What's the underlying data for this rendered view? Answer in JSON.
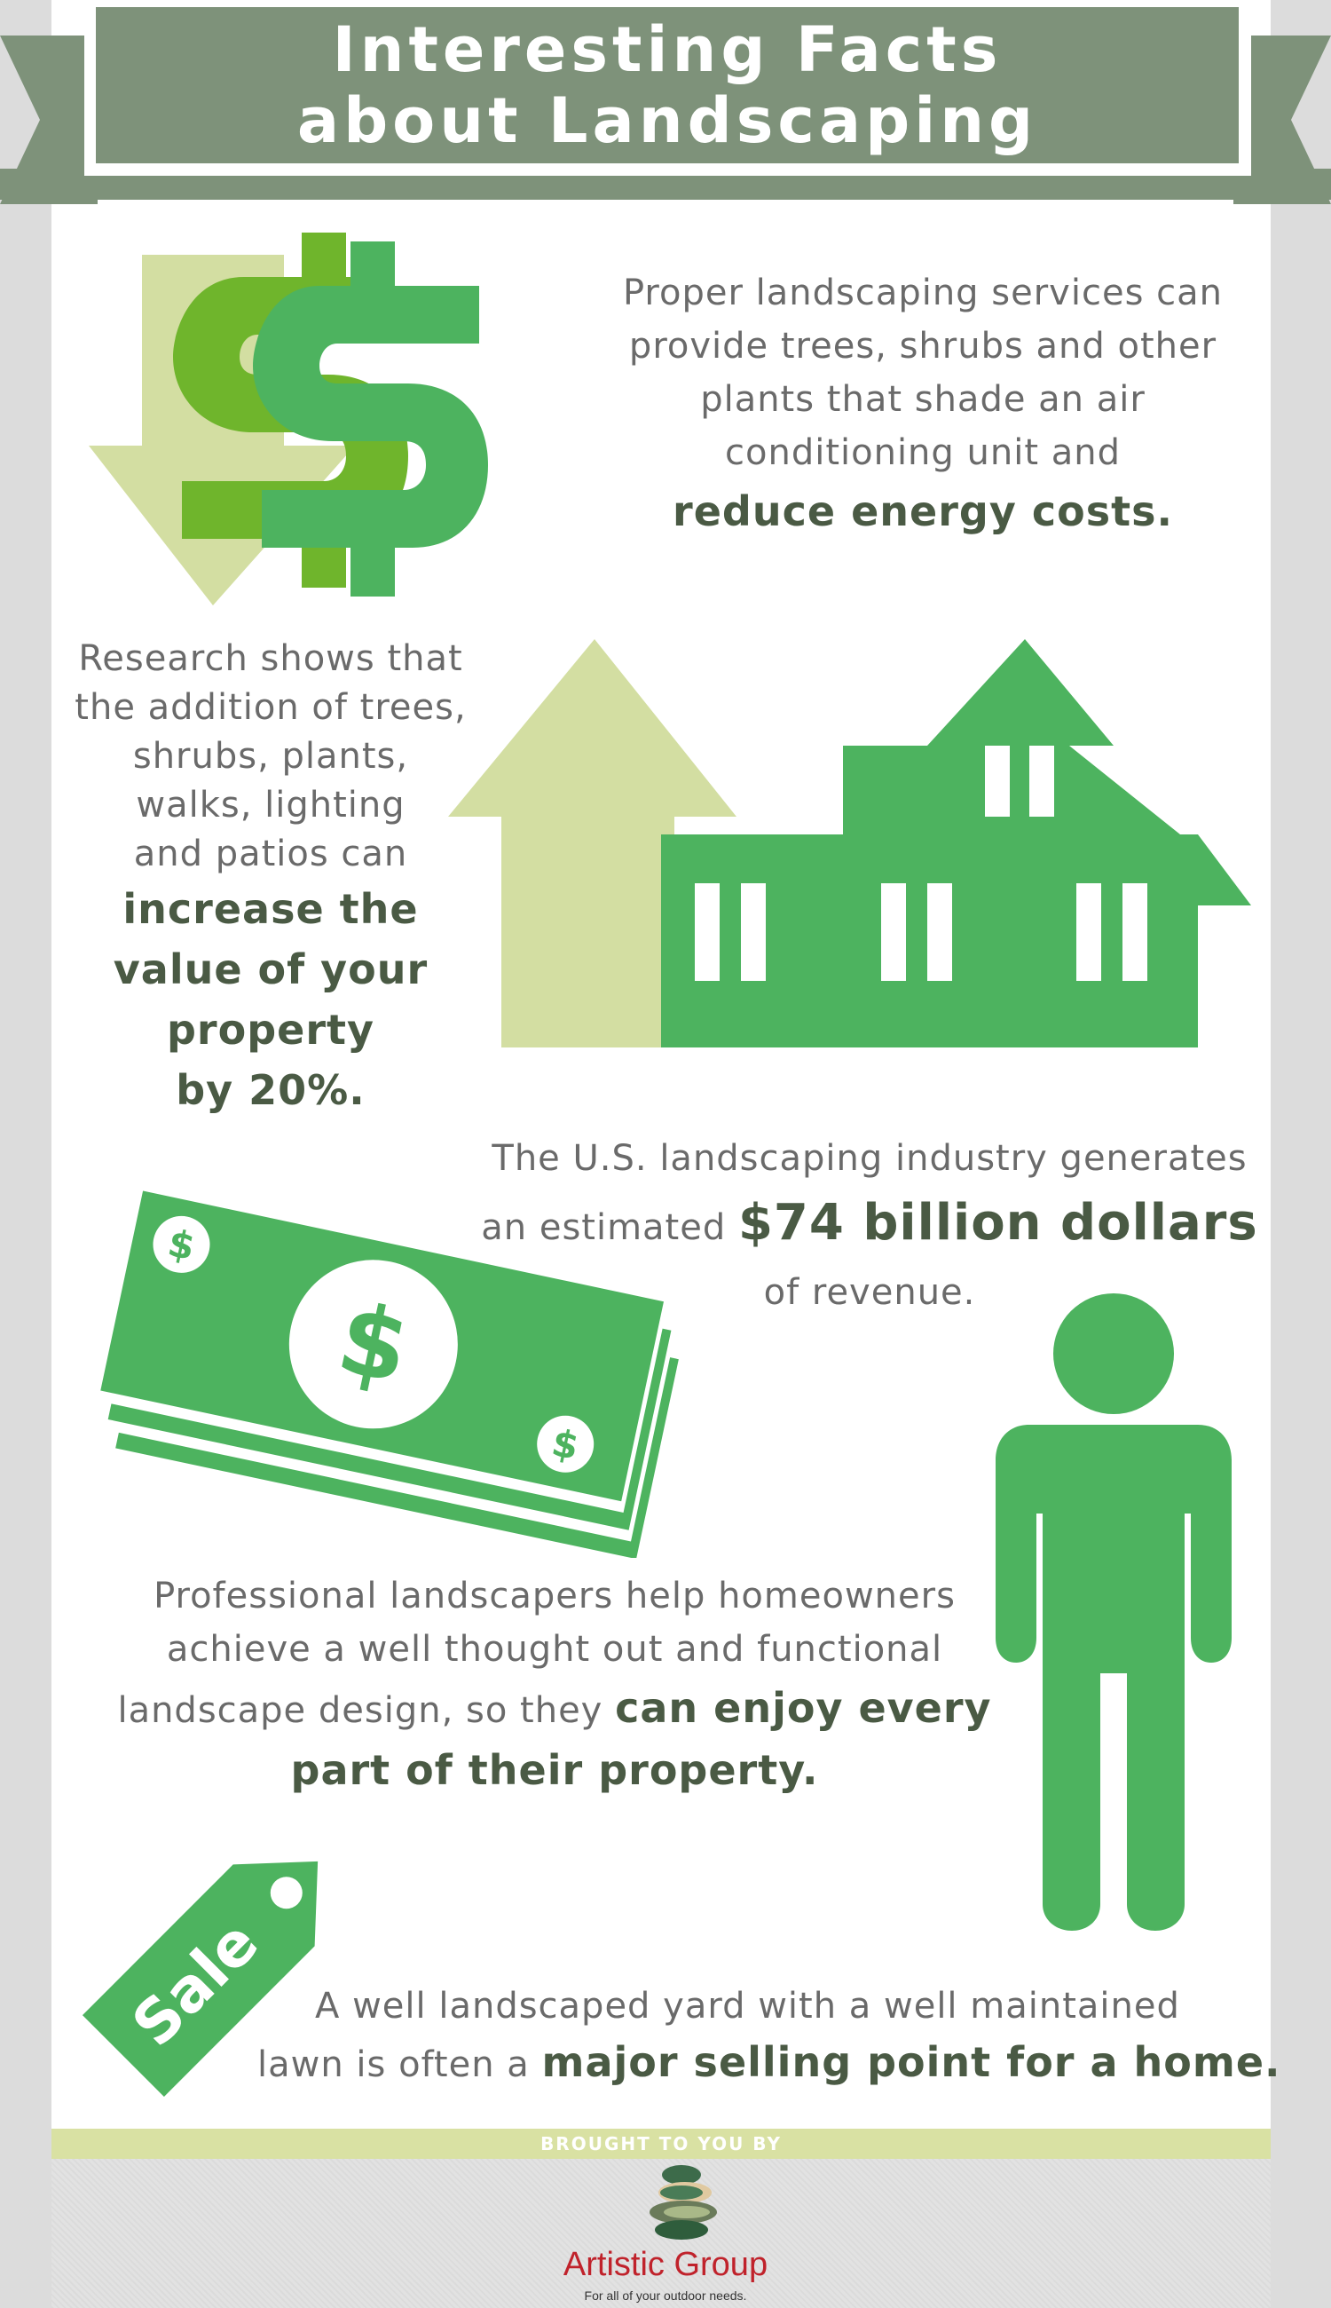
{
  "header": {
    "title_line1": "Interesting Facts",
    "title_line2": "about Landscaping"
  },
  "facts": [
    {
      "text_lines": [
        "Proper landscaping services can",
        "provide trees, shrubs and other",
        "plants that shade an air",
        "conditioning unit and"
      ],
      "highlight": "reduce energy costs.",
      "icon": "dollar-down-arrow-icon"
    },
    {
      "text_lines": [
        "Research shows that",
        "the addition of trees,",
        "shrubs, plants,",
        "walks, lighting",
        "and patios can"
      ],
      "highlight_lines": [
        "increase the",
        "value of your",
        "property",
        "by 20%."
      ],
      "icon": "house-up-arrow-icon"
    },
    {
      "line1": "The U.S. landscaping industry generates",
      "line2_prefix": "an estimated",
      "highlight": "$74 billion dollars",
      "line3": "of revenue.",
      "icon": "money-stack-icon"
    },
    {
      "line1": "Professional landscapers help homeowners",
      "line2": "achieve a well thought out and functional",
      "line3_prefix": "landscape design, so they",
      "highlight_1": "can enjoy every",
      "highlight_2": "part of their property.",
      "icon": "person-icon"
    },
    {
      "line1": "A well landscaped yard with a well maintained",
      "line2_prefix": "lawn is often a",
      "highlight": "major selling point for a home.",
      "icon": "sale-tag-icon",
      "tag_label": "Sale"
    }
  ],
  "footer": {
    "brought_by": "BROUGHT TO YOU BY",
    "brand": "Artistic Group",
    "tagline": "For all of your outdoor needs."
  },
  "colors": {
    "banner": "#7e927a",
    "green": "#4db35f",
    "light_green": "#d3dea2",
    "highlight_text": "#4a5a44",
    "body_text": "#6a6a6a",
    "brand_red": "#c0222b"
  }
}
